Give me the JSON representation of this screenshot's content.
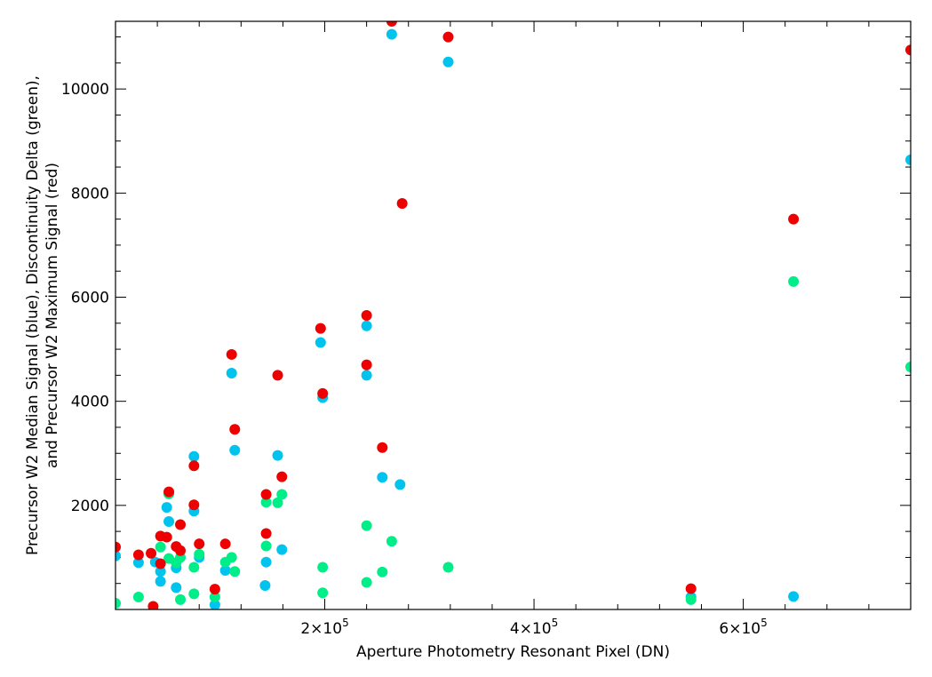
{
  "chart_data": {
    "type": "scatter",
    "title": "",
    "xlabel": "Aperture Photometry Resonant Pixel (DN)",
    "ylabel_lines": [
      "Precursor W2 Median Signal (blue), Discontinuity Delta (green),",
      "and Precursor W2 Maximum Signal (red)"
    ],
    "xlim": [
      0,
      760000
    ],
    "ylim": [
      0,
      11300
    ],
    "x_ticks": [
      {
        "value": 200000,
        "mantissa": "2",
        "exponent": "5"
      },
      {
        "value": 400000,
        "mantissa": "4",
        "exponent": "5"
      },
      {
        "value": 600000,
        "mantissa": "6",
        "exponent": "5"
      }
    ],
    "y_ticks": [
      {
        "value": 2000,
        "label": "2000"
      },
      {
        "value": 4000,
        "label": "4000"
      },
      {
        "value": 6000,
        "label": "6000"
      },
      {
        "value": 8000,
        "label": "8000"
      },
      {
        "value": 10000,
        "label": "10000"
      }
    ],
    "x_times_symbol": "×10",
    "grid": false,
    "series": [
      {
        "color": "#00c4ee",
        "points": [
          [
            0,
            1030
          ],
          [
            22000,
            900
          ],
          [
            38000,
            910
          ],
          [
            43000,
            730
          ],
          [
            43000,
            540
          ],
          [
            49000,
            1960
          ],
          [
            51000,
            1690
          ],
          [
            58000,
            800
          ],
          [
            58000,
            420
          ],
          [
            75000,
            2940
          ],
          [
            75000,
            1890
          ],
          [
            80000,
            1000
          ],
          [
            95000,
            90
          ],
          [
            105000,
            750
          ],
          [
            111000,
            4540
          ],
          [
            114000,
            3060
          ],
          [
            143000,
            460
          ],
          [
            144000,
            910
          ],
          [
            155000,
            2960
          ],
          [
            159000,
            1150
          ],
          [
            196000,
            5130
          ],
          [
            198000,
            4070
          ],
          [
            240000,
            5450
          ],
          [
            240000,
            4500
          ],
          [
            255000,
            2540
          ],
          [
            264000,
            11050
          ],
          [
            272000,
            2400
          ],
          [
            318000,
            10520
          ],
          [
            550000,
            240
          ],
          [
            648000,
            250
          ],
          [
            760000,
            8640
          ]
        ]
      },
      {
        "color": "#00ee88",
        "points": [
          [
            0,
            120
          ],
          [
            22000,
            240
          ],
          [
            43000,
            1200
          ],
          [
            51000,
            980
          ],
          [
            51000,
            2220
          ],
          [
            58000,
            900
          ],
          [
            62000,
            1000
          ],
          [
            62000,
            190
          ],
          [
            75000,
            300
          ],
          [
            75000,
            810
          ],
          [
            80000,
            1060
          ],
          [
            95000,
            240
          ],
          [
            105000,
            910
          ],
          [
            111000,
            1000
          ],
          [
            114000,
            730
          ],
          [
            144000,
            2060
          ],
          [
            144000,
            1220
          ],
          [
            155000,
            2050
          ],
          [
            159000,
            2210
          ],
          [
            198000,
            320
          ],
          [
            198000,
            810
          ],
          [
            240000,
            520
          ],
          [
            240000,
            1610
          ],
          [
            255000,
            720
          ],
          [
            264000,
            1310
          ],
          [
            318000,
            810
          ],
          [
            550000,
            190
          ],
          [
            648000,
            6300
          ],
          [
            760000,
            4660
          ]
        ]
      },
      {
        "color": "#ee0000",
        "points": [
          [
            0,
            1200
          ],
          [
            22000,
            1050
          ],
          [
            34000,
            1080
          ],
          [
            36000,
            60
          ],
          [
            43000,
            1410
          ],
          [
            43000,
            880
          ],
          [
            49000,
            1390
          ],
          [
            51000,
            2260
          ],
          [
            58000,
            1210
          ],
          [
            62000,
            1630
          ],
          [
            62000,
            1130
          ],
          [
            75000,
            2760
          ],
          [
            75000,
            2010
          ],
          [
            80000,
            1260
          ],
          [
            95000,
            390
          ],
          [
            105000,
            1260
          ],
          [
            111000,
            4900
          ],
          [
            114000,
            3460
          ],
          [
            144000,
            2210
          ],
          [
            144000,
            1460
          ],
          [
            155000,
            4500
          ],
          [
            159000,
            2550
          ],
          [
            196000,
            5400
          ],
          [
            198000,
            4150
          ],
          [
            240000,
            5650
          ],
          [
            240000,
            4700
          ],
          [
            255000,
            3110
          ],
          [
            264000,
            11300
          ],
          [
            274000,
            7800
          ],
          [
            318000,
            11000
          ],
          [
            550000,
            400
          ],
          [
            648000,
            7500
          ],
          [
            760000,
            10750
          ]
        ]
      }
    ]
  }
}
